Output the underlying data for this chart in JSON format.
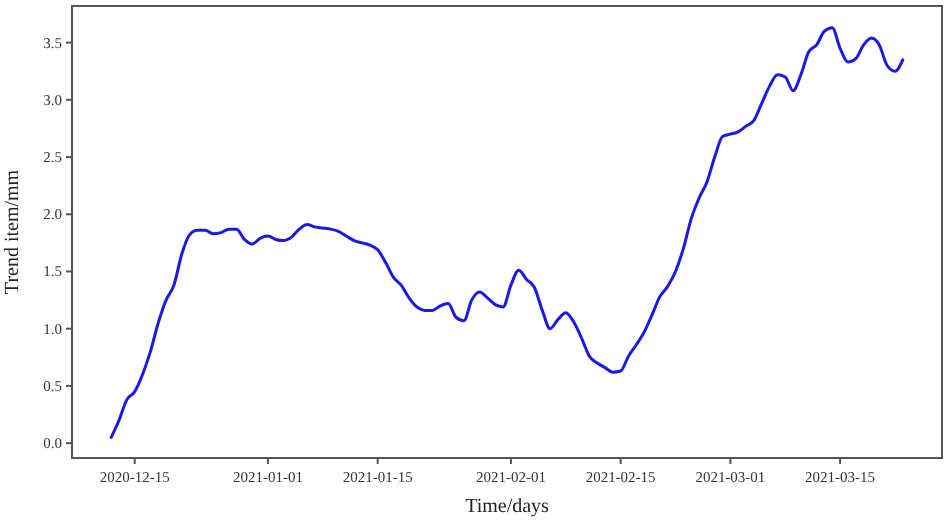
{
  "chart_data": {
    "type": "line",
    "xlabel": "Time/days",
    "ylabel": "Trend item/mm",
    "x": [
      "2020-12-12",
      "2020-12-13",
      "2020-12-14",
      "2020-12-15",
      "2020-12-16",
      "2020-12-17",
      "2020-12-18",
      "2020-12-19",
      "2020-12-20",
      "2020-12-21",
      "2020-12-22",
      "2020-12-23",
      "2020-12-24",
      "2020-12-25",
      "2020-12-26",
      "2020-12-27",
      "2020-12-28",
      "2020-12-29",
      "2020-12-30",
      "2020-12-31",
      "2021-01-01",
      "2021-01-02",
      "2021-01-03",
      "2021-01-04",
      "2021-01-05",
      "2021-01-06",
      "2021-01-07",
      "2021-01-08",
      "2021-01-09",
      "2021-01-10",
      "2021-01-11",
      "2021-01-12",
      "2021-01-13",
      "2021-01-14",
      "2021-01-15",
      "2021-01-16",
      "2021-01-17",
      "2021-01-18",
      "2021-01-19",
      "2021-01-20",
      "2021-01-21",
      "2021-01-22",
      "2021-01-23",
      "2021-01-24",
      "2021-01-25",
      "2021-01-26",
      "2021-01-27",
      "2021-01-28",
      "2021-01-29",
      "2021-01-30",
      "2021-01-31",
      "2021-02-01",
      "2021-02-02",
      "2021-02-03",
      "2021-02-04",
      "2021-02-05",
      "2021-02-06",
      "2021-02-07",
      "2021-02-08",
      "2021-02-09",
      "2021-02-10",
      "2021-02-11",
      "2021-02-12",
      "2021-02-13",
      "2021-02-14",
      "2021-02-15",
      "2021-02-16",
      "2021-02-17",
      "2021-02-18",
      "2021-02-19",
      "2021-02-20",
      "2021-02-21",
      "2021-02-22",
      "2021-02-23",
      "2021-02-24",
      "2021-02-25",
      "2021-02-26",
      "2021-02-27",
      "2021-02-28",
      "2021-03-01",
      "2021-03-02",
      "2021-03-03",
      "2021-03-04",
      "2021-03-05",
      "2021-03-06",
      "2021-03-07",
      "2021-03-08",
      "2021-03-09",
      "2021-03-10",
      "2021-03-11",
      "2021-03-12",
      "2021-03-13",
      "2021-03-14",
      "2021-03-15",
      "2021-03-16",
      "2021-03-17",
      "2021-03-18",
      "2021-03-19",
      "2021-03-20",
      "2021-03-21",
      "2021-03-22",
      "2021-03-23"
    ],
    "series": [
      {
        "color": "#1a1ae6",
        "values": [
          0.05,
          0.2,
          0.38,
          0.45,
          0.6,
          0.8,
          1.05,
          1.25,
          1.38,
          1.65,
          1.82,
          1.86,
          1.86,
          1.83,
          1.84,
          1.87,
          1.87,
          1.78,
          1.74,
          1.79,
          1.81,
          1.78,
          1.77,
          1.8,
          1.87,
          1.91,
          1.89,
          1.88,
          1.87,
          1.85,
          1.81,
          1.77,
          1.75,
          1.73,
          1.69,
          1.58,
          1.45,
          1.38,
          1.27,
          1.19,
          1.16,
          1.16,
          1.2,
          1.22,
          1.1,
          1.07,
          1.25,
          1.32,
          1.27,
          1.21,
          1.19,
          1.38,
          1.51,
          1.43,
          1.36,
          1.16,
          1.0,
          1.08,
          1.14,
          1.06,
          0.92,
          0.76,
          0.7,
          0.66,
          0.62,
          0.63,
          0.76,
          0.86,
          0.97,
          1.12,
          1.28,
          1.37,
          1.5,
          1.7,
          1.96,
          2.14,
          2.28,
          2.5,
          2.68,
          2.7,
          2.72,
          2.77,
          2.82,
          2.97,
          3.12,
          3.22,
          3.2,
          3.08,
          3.22,
          3.42,
          3.48,
          3.6,
          3.63,
          3.45,
          3.33,
          3.36,
          3.48,
          3.54,
          3.48,
          3.3,
          3.25,
          3.35
        ]
      }
    ],
    "xlim": [
      "2020-12-07",
      "2021-03-28"
    ],
    "xticks": [
      "2020-12-15",
      "2021-01-01",
      "2021-01-15",
      "2021-02-01",
      "2021-02-15",
      "2021-03-01",
      "2021-03-15"
    ],
    "ylim": [
      -0.13,
      3.82
    ],
    "yticks": [
      {
        "value": 0,
        "label": "0.0"
      },
      {
        "value": 0.5,
        "label": "0.5"
      },
      {
        "value": 1,
        "label": "1.0"
      },
      {
        "value": 1.5,
        "label": "1.5"
      },
      {
        "value": 2,
        "label": "2.0"
      },
      {
        "value": 2.5,
        "label": "2.5"
      },
      {
        "value": 3,
        "label": "3.0"
      },
      {
        "value": 3.5,
        "label": "3.5"
      }
    ],
    "grid": false
  }
}
